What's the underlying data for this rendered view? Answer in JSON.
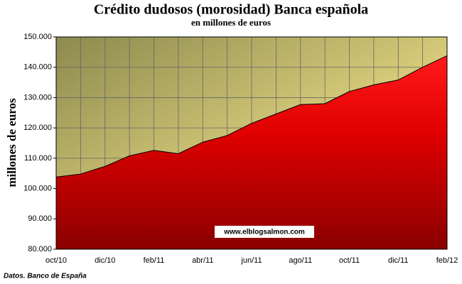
{
  "chart_data": {
    "type": "area",
    "title": "Crédito dudosos (morosidad) Banca española",
    "subtitle": "en millones de euros",
    "y_label": "millones de euros",
    "annotation": "www.elblogsalmon.com",
    "source": "Datos. Banco de España",
    "categories": [
      "oct/10",
      null,
      "dic/10",
      null,
      "feb/11",
      null,
      "abr/11",
      null,
      "jun/11",
      null,
      "ago/11",
      null,
      "oct/11",
      null,
      "dic/11",
      null,
      "feb/12"
    ],
    "values": [
      103800,
      104800,
      107300,
      110800,
      112600,
      111500,
      115300,
      117500,
      121500,
      124600,
      127700,
      128000,
      132000,
      134200,
      135800,
      140000,
      143800
    ],
    "color": "#ff0000",
    "ylim": [
      80000,
      150000
    ],
    "yticks": [
      {
        "value": 80000,
        "label": "80.000"
      },
      {
        "value": 90000,
        "label": "90.000"
      },
      {
        "value": 100000,
        "label": "100.000"
      },
      {
        "value": 110000,
        "label": "110.000"
      },
      {
        "value": 120000,
        "label": "120.000"
      },
      {
        "value": 130000,
        "label": "130.000"
      },
      {
        "value": 140000,
        "label": "140.000"
      },
      {
        "value": 150000,
        "label": "150.000"
      }
    ],
    "grid": true
  }
}
